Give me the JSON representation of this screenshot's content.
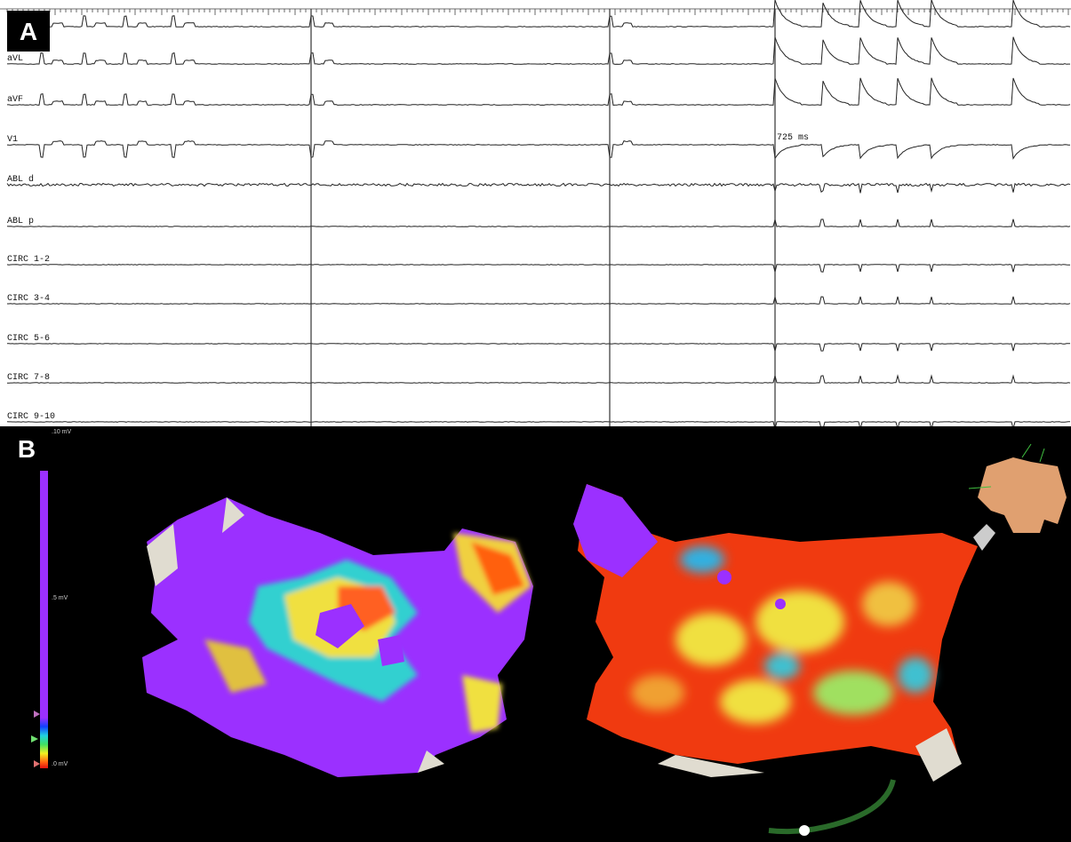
{
  "panel_a": {
    "label": "A",
    "channels": [
      "aVL",
      "aVF",
      "V1",
      "ABL d",
      "ABL p",
      "CIRC 1-2",
      "CIRC 3-4",
      "CIRC 5-6",
      "CIRC 7-8",
      "CIRC 9-10"
    ],
    "annotation": "725 ms"
  },
  "panel_b": {
    "label": "B",
    "scale_labels": [
      ".10 mV",
      ".5 mV",
      ".0 mV"
    ]
  }
}
